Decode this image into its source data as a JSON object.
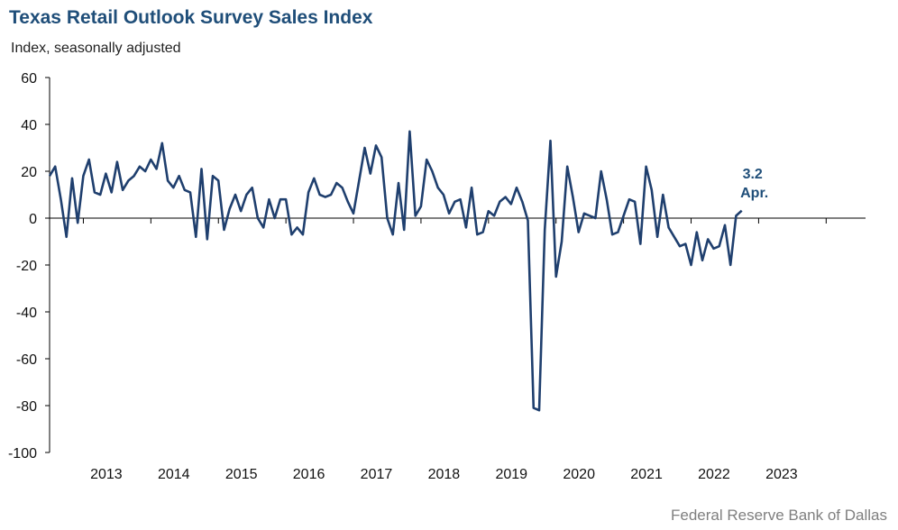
{
  "chart_data": {
    "type": "line",
    "title": "Texas Retail Outlook Survey Sales Index",
    "subtitle": "Index, seasonally adjusted",
    "source": "Federal Reserve Bank of Dallas",
    "ylim": [
      -100,
      60
    ],
    "yticks": [
      60,
      40,
      20,
      0,
      -20,
      -40,
      -60,
      -80,
      -100
    ],
    "xtick_labels": [
      "2013",
      "2014",
      "2015",
      "2016",
      "2017",
      "2018",
      "2019",
      "2020",
      "2021",
      "2022",
      "2023"
    ],
    "start": "2012-07",
    "end": "2023-04",
    "grid": false,
    "line_color": "#1f3f6e",
    "annotation": {
      "value": "3.2",
      "label": "Apr."
    },
    "series": [
      {
        "values": [
          18,
          22,
          8,
          -8,
          17,
          -2,
          18,
          25,
          11,
          10,
          19,
          11,
          24,
          12,
          16,
          18,
          22,
          20,
          25,
          21,
          32,
          16,
          13,
          18,
          12,
          11,
          -8,
          21,
          -9,
          18,
          16,
          -5,
          4,
          10,
          3,
          10,
          13,
          0,
          -4,
          8,
          0,
          8,
          8,
          -7,
          -4,
          -7,
          11,
          17,
          10,
          9,
          10,
          15,
          13,
          7,
          2,
          16,
          30,
          19,
          31,
          26,
          0,
          -7,
          15,
          -5,
          37,
          1,
          5,
          25,
          20,
          13,
          10,
          2,
          7,
          8,
          -4,
          13,
          -7,
          -6,
          3,
          1,
          7,
          9,
          6,
          13,
          7,
          -1,
          -81,
          -82,
          -5,
          33,
          -25,
          -10,
          22,
          9,
          -6,
          2,
          1,
          0,
          20,
          8,
          -7,
          -6,
          1,
          8,
          7,
          -11,
          22,
          12,
          -8,
          10,
          -4,
          -8,
          -12,
          -11,
          -20,
          -6,
          -18,
          -9,
          -13,
          -12,
          -3,
          -20,
          1,
          3.2
        ]
      }
    ]
  }
}
